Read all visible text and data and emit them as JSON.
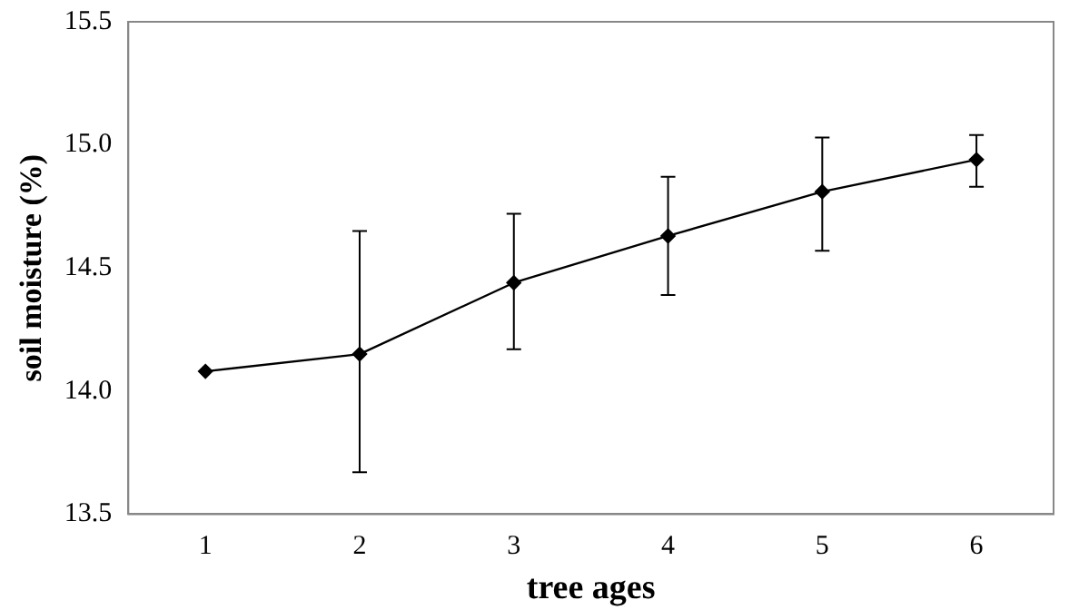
{
  "chart_data": {
    "type": "line",
    "xlabel": "tree ages",
    "ylabel": "soil moisture (%)",
    "categories": [
      "1",
      "2",
      "3",
      "4",
      "5",
      "6"
    ],
    "series": [
      {
        "color": "#000000",
        "values": [
          14.08,
          14.15,
          14.44,
          14.63,
          14.81,
          14.94
        ],
        "errors": [
          null,
          [
            13.67,
            14.65
          ],
          [
            14.17,
            14.72
          ],
          [
            14.39,
            14.87
          ],
          [
            14.57,
            15.03
          ],
          [
            14.83,
            15.04
          ]
        ]
      }
    ],
    "ylim": [
      13.5,
      15.5
    ],
    "yticks": [
      13.5,
      {
        "value": 14,
        "label": "14.0"
      },
      14.5,
      {
        "value": 15,
        "label": "15.0"
      },
      15.5
    ],
    "grid": false,
    "legend": false,
    "marker": "diamond",
    "line_style": "solid"
  }
}
